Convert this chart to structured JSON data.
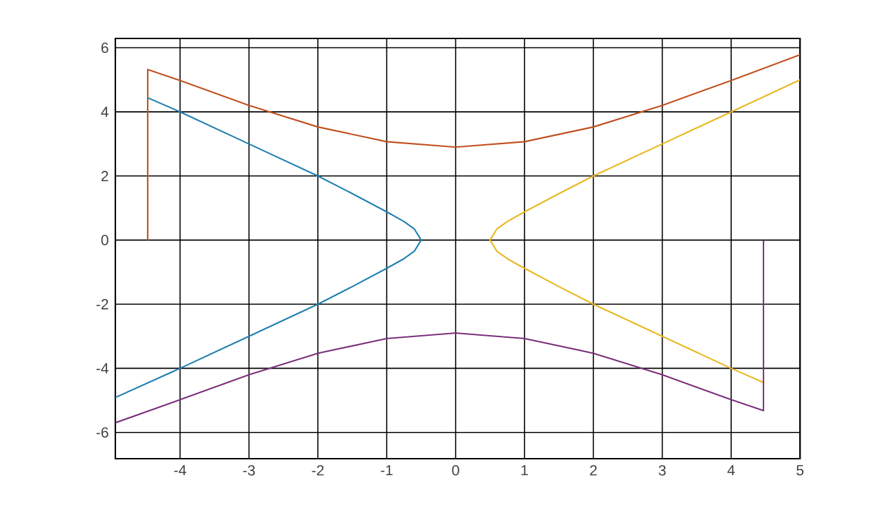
{
  "chart_data": {
    "type": "line",
    "xlim": [
      -4.94,
      5
    ],
    "ylim": [
      -6.82,
      6.29
    ],
    "xticks": [
      -4,
      -3,
      -2,
      -1,
      0,
      1,
      2,
      3,
      4,
      5
    ],
    "yticks": [
      -6,
      -4,
      -2,
      0,
      2,
      4,
      6
    ],
    "grid": true,
    "marker": "none",
    "line_style": "solid",
    "series": [
      {
        "color": "#c0501e",
        "x": [
          -4.47,
          -4.47,
          -4,
          -3,
          -2,
          -1,
          0,
          1,
          2,
          3,
          4,
          5
        ],
        "values": [
          0,
          5.32,
          4.98,
          4.2,
          3.53,
          3.07,
          2.9,
          3.07,
          3.53,
          4.2,
          4.98,
          5.78
        ]
      },
      {
        "color": "#1f7fb0",
        "x": [
          -4.47,
          -4,
          -3,
          -2,
          -1.5,
          -1,
          -0.75,
          -0.6,
          -0.5,
          -0.6,
          -0.75,
          -1,
          -1.5,
          -2,
          -3,
          -4,
          -4.94
        ],
        "values": [
          4.44,
          4,
          3,
          2,
          1.45,
          0.88,
          0.58,
          0.35,
          0,
          -0.35,
          -0.58,
          -0.88,
          -1.45,
          -2,
          -3,
          -4,
          -4.91
        ]
      },
      {
        "color": "#e8b820",
        "x": [
          5,
          4,
          3,
          2,
          1.5,
          1,
          0.75,
          0.6,
          0.5,
          0.6,
          0.75,
          1,
          1.5,
          2,
          3,
          4,
          4.47
        ],
        "values": [
          5,
          4,
          3,
          2,
          1.45,
          0.88,
          0.58,
          0.35,
          0,
          -0.35,
          -0.58,
          -0.88,
          -1.45,
          -2,
          -3,
          -4,
          -4.44
        ]
      },
      {
        "color": "#7b2d7b",
        "x": [
          -4.94,
          -4,
          -3,
          -2,
          -1,
          0,
          1,
          2,
          3,
          4,
          4.47,
          4.47
        ],
        "values": [
          -5.7,
          -4.98,
          -4.2,
          -3.53,
          -3.07,
          -2.9,
          -3.07,
          -3.53,
          -4.2,
          -4.98,
          -5.32,
          0
        ]
      }
    ]
  }
}
